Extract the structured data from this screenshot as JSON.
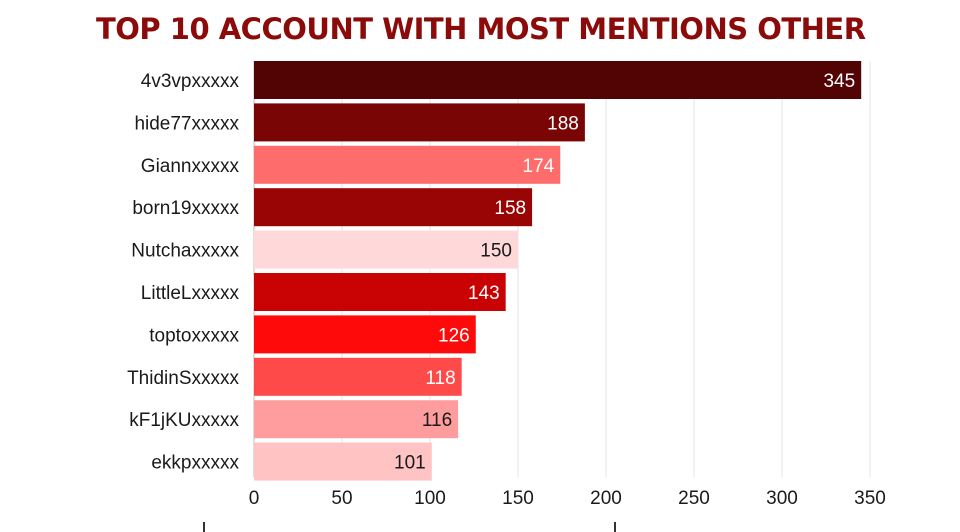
{
  "chart_data": {
    "type": "bar",
    "orientation": "horizontal",
    "title": "TOP 10 ACCOUNT WITH MOST MENTIONS OTHER",
    "title_color": "#8b0b0b",
    "categories": [
      "4v3vpxxxxx",
      "hide77xxxxx",
      "Giannxxxxx",
      "born19xxxxx",
      "Nutchaxxxxx",
      "LittleLxxxxx",
      "toptoxxxxx",
      "ThidinSxxxxx",
      "kF1jKUxxxxx",
      "ekkpxxxxx"
    ],
    "values": [
      345,
      188,
      174,
      158,
      150,
      143,
      126,
      118,
      116,
      101
    ],
    "bar_colors": [
      "#520304",
      "#7a0505",
      "#ff6c6c",
      "#990405",
      "#ffd9da",
      "#c90303",
      "#ff0a0a",
      "#ff4a4a",
      "#ff9d9e",
      "#ffc3c4"
    ],
    "label_colors": [
      "#ffffff",
      "#ffffff",
      "#ffffff",
      "#ffffff",
      "#1a1a1a",
      "#ffffff",
      "#ffffff",
      "#ffffff",
      "#1a1a1a",
      "#1a1a1a"
    ],
    "xticks": [
      0,
      50,
      100,
      150,
      200,
      250,
      300,
      350
    ],
    "xlim": [
      0,
      350
    ],
    "grid": true,
    "legend": "none"
  }
}
